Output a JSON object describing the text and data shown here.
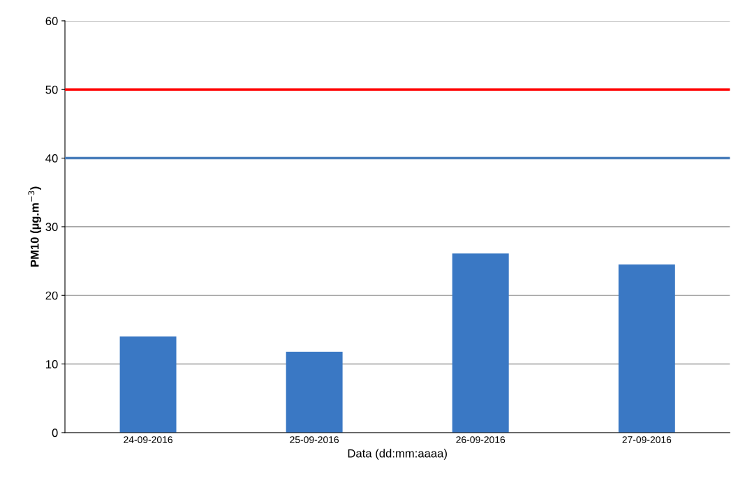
{
  "chart_data": {
    "type": "bar",
    "categories": [
      "24-09-2016",
      "25-09-2016",
      "26-09-2016",
      "27-09-2016"
    ],
    "values": [
      14.0,
      11.8,
      26.1,
      24.5
    ],
    "color": "#3a78c4",
    "xlabel": "Data (dd:mm:aaaa)",
    "ylabel": "PM10 (µg.m$^{−3}$)",
    "ylim": [
      0,
      60
    ],
    "yticks": [
      0,
      10,
      20,
      30,
      40,
      50,
      60
    ],
    "grid": "y",
    "ref_lines": [
      {
        "axis": "y",
        "value": 50,
        "label": null,
        "color": "#ff0000"
      },
      {
        "axis": "y",
        "value": 40,
        "label": null,
        "color": "#4a7ebb"
      }
    ]
  }
}
